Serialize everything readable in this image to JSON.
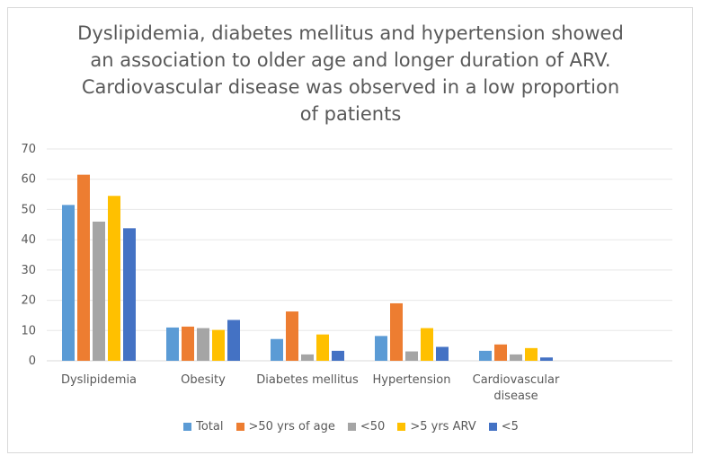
{
  "chart_data": {
    "type": "bar",
    "title": "Dyslipidemia, diabetes mellitus and hypertension showed an association to older age and longer duration of ARV. Cardiovascular disease was observed in a low proportion of patients",
    "title_lines": [
      "Dyslipidemia, diabetes mellitus and hypertension showed",
      "an association to older age and longer duration of ARV.",
      "Cardiovascular disease was observed in a low proportion",
      "of patients"
    ],
    "categories": [
      "Dyslipidemia",
      "Obesity",
      "Diabetes mellitus",
      "Hypertension",
      "Cardiovascular disease"
    ],
    "category_label_lines": [
      [
        "Dyslipidemia"
      ],
      [
        "Obesity"
      ],
      [
        "Diabetes mellitus"
      ],
      [
        "Hypertension"
      ],
      [
        "Cardiovascular",
        "disease"
      ]
    ],
    "series": [
      {
        "name": "Total",
        "color": "#5b9bd5",
        "values": [
          51.5,
          11,
          7.2,
          8.2,
          3.3
        ]
      },
      {
        "name": ">50 yrs of age",
        "color": "#ed7d31",
        "values": [
          61.5,
          11.3,
          16.3,
          19,
          5.4
        ]
      },
      {
        "name": "<50",
        "color": "#a5a5a5",
        "values": [
          46,
          10.8,
          2.1,
          3.1,
          2.1
        ]
      },
      {
        "name": ">5 yrs ARV",
        "color": "#ffc000",
        "values": [
          54.5,
          10.2,
          8.7,
          10.8,
          4.2
        ]
      },
      {
        "name": "<5",
        "color": "#4472c4",
        "values": [
          43.8,
          13.5,
          3.3,
          4.6,
          1.1
        ]
      }
    ],
    "ylim": [
      0,
      70
    ],
    "yticks": [
      0,
      10,
      20,
      30,
      40,
      50,
      60,
      70
    ],
    "xlabel": "",
    "ylabel": "",
    "grid": true,
    "legend_position": "bottom"
  }
}
